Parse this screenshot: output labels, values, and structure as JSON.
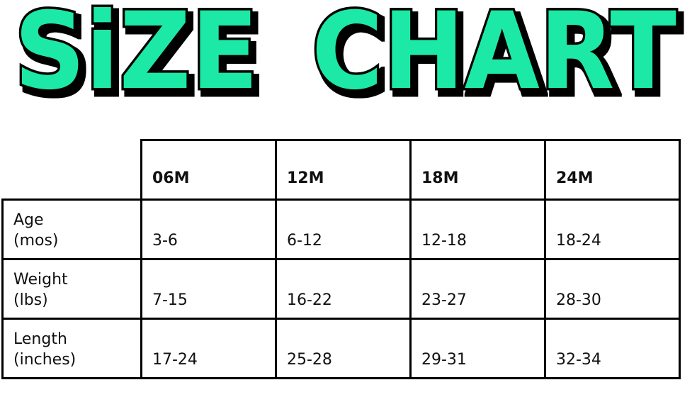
{
  "title": {
    "word1": "SiZE",
    "word2": "CHART",
    "fill_color": "#1de9a6",
    "outline_color": "#000000"
  },
  "table": {
    "columns": [
      "06M",
      "12M",
      "18M",
      "24M"
    ],
    "rows": [
      {
        "label": "Age",
        "unit": "(mos)",
        "values": [
          "3-6",
          "6-12",
          "12-18",
          "18-24"
        ]
      },
      {
        "label": "Weight",
        "unit": "(lbs)",
        "values": [
          "7-15",
          "16-22",
          "23-27",
          "28-30"
        ]
      },
      {
        "label": "Length",
        "unit": "(inches)",
        "values": [
          "17-24",
          "25-28",
          "29-31",
          "32-34"
        ]
      }
    ]
  }
}
